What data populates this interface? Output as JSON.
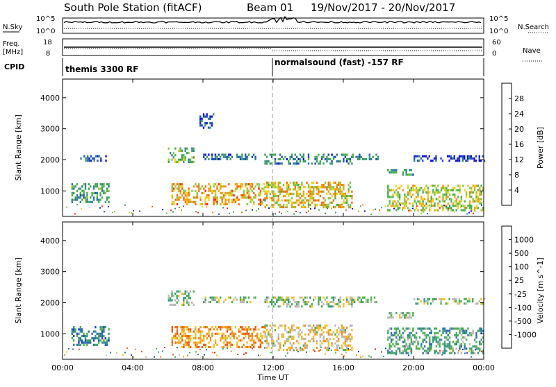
{
  "header": {
    "station": "South Pole Station (fitACF)",
    "beam": "Beam 01",
    "date_range": "19/Nov/2017 - 20/Nov/2017"
  },
  "top_panels": {
    "nsky_label": "N.Sky",
    "nsky_ticks": [
      "10^5",
      "10^0"
    ],
    "nsearch_label": "N.Search",
    "nsearch_ticks": [
      "10^5",
      "10^0"
    ],
    "freq_label_1": "Freq.",
    "freq_label_2": "[MHz]",
    "freq_ticks": [
      "18",
      "8"
    ],
    "nave_label": "Nave",
    "nave_ticks": [
      "60",
      "0"
    ],
    "cpid_label": "CPID",
    "cpid_segments": [
      {
        "text": "themis 3300 RF",
        "start_hour": 0
      },
      {
        "text": "normalsound (fast) -157 RF",
        "start_hour": 12
      }
    ]
  },
  "chart_data": [
    {
      "type": "heatmap",
      "panel": "power",
      "ylabel": "Slant Range [km]",
      "y_ticks": [
        "1000",
        "2000",
        "3000",
        "4000"
      ],
      "ylim": [
        180,
        4600
      ],
      "xlim_hours": [
        0,
        24
      ],
      "colorbar": {
        "label": "Power [dB]",
        "ticks": [
          "4",
          "8",
          "12",
          "16",
          "20",
          "24",
          "28"
        ],
        "colors": [
          "#1010e0",
          "#1e4fc0",
          "#2e7d9a",
          "#3b9a6a",
          "#49b04a",
          "#8cc63f",
          "#f0d020",
          "#f0a010",
          "#f07010",
          "#e83010"
        ]
      },
      "echo_bands": [
        {
          "t0": 0.5,
          "t1": 2.6,
          "r0": 650,
          "r1": 1250,
          "level": 0.35
        },
        {
          "t0": 1.0,
          "t1": 2.5,
          "r0": 1950,
          "r1": 2150,
          "level": 0.1
        },
        {
          "t0": 6.0,
          "t1": 7.5,
          "r0": 1950,
          "r1": 2400,
          "level": 0.45
        },
        {
          "t0": 6.2,
          "t1": 11.5,
          "r0": 600,
          "r1": 1250,
          "level": 0.75
        },
        {
          "t0": 8.0,
          "t1": 11.0,
          "r0": 2000,
          "r1": 2200,
          "level": 0.2
        },
        {
          "t0": 7.8,
          "t1": 8.6,
          "r0": 3000,
          "r1": 3500,
          "level": 0.15
        },
        {
          "t0": 11.5,
          "t1": 16.5,
          "r0": 1900,
          "r1": 2200,
          "level": 0.25
        },
        {
          "t0": 11.5,
          "t1": 16.5,
          "r0": 500,
          "r1": 1300,
          "level": 0.7
        },
        {
          "t0": 16.5,
          "t1": 18.0,
          "r0": 2000,
          "r1": 2200,
          "level": 0.3
        },
        {
          "t0": 18.5,
          "t1": 20.0,
          "r0": 1500,
          "r1": 1700,
          "level": 0.3
        },
        {
          "t0": 18.5,
          "t1": 24.0,
          "r0": 400,
          "r1": 1200,
          "level": 0.6
        },
        {
          "t0": 20.0,
          "t1": 24.0,
          "r0": 1950,
          "r1": 2150,
          "level": 0.05
        }
      ]
    },
    {
      "type": "heatmap",
      "panel": "velocity",
      "ylabel": "Slant Range [km]",
      "y_ticks": [
        "1000",
        "2000",
        "3000",
        "4000"
      ],
      "ylim": [
        180,
        4600
      ],
      "xlim_hours": [
        0,
        24
      ],
      "xlabel": "Time UT",
      "x_ticks": [
        "00:00",
        "04:00",
        "08:00",
        "12:00",
        "16:00",
        "20:00",
        "00:00"
      ],
      "colorbar": {
        "label": "Velocity [m s^-1]",
        "ticks": [
          "1000",
          "500",
          "100",
          "25",
          "-25",
          "-100",
          "-500",
          "-1000"
        ],
        "colors": [
          "#2040c0",
          "#2e6fa8",
          "#3a9a80",
          "#4ab04a",
          "#b8b8b8",
          "#f0c020",
          "#f09020",
          "#f06010",
          "#e02010"
        ]
      },
      "echo_bands": [
        {
          "t0": 0.5,
          "t1": 2.6,
          "r0": 650,
          "r1": 1250,
          "level": 0.2
        },
        {
          "t0": 6.0,
          "t1": 7.5,
          "r0": 1950,
          "r1": 2400,
          "level": 0.45
        },
        {
          "t0": 6.2,
          "t1": 11.5,
          "r0": 600,
          "r1": 1250,
          "level": 0.75
        },
        {
          "t0": 8.0,
          "t1": 11.0,
          "r0": 2000,
          "r1": 2200,
          "level": 0.45
        },
        {
          "t0": 11.5,
          "t1": 16.5,
          "r0": 1900,
          "r1": 2200,
          "level": 0.45
        },
        {
          "t0": 11.5,
          "t1": 16.5,
          "r0": 500,
          "r1": 1300,
          "level": 0.6
        },
        {
          "t0": 16.5,
          "t1": 18.0,
          "r0": 2000,
          "r1": 2200,
          "level": 0.45
        },
        {
          "t0": 18.5,
          "t1": 20.0,
          "r0": 1500,
          "r1": 1700,
          "level": 0.45
        },
        {
          "t0": 18.5,
          "t1": 24.0,
          "r0": 400,
          "r1": 1200,
          "level": 0.3
        },
        {
          "t0": 20.0,
          "t1": 24.0,
          "r0": 1950,
          "r1": 2150,
          "level": 0.45
        }
      ]
    }
  ]
}
